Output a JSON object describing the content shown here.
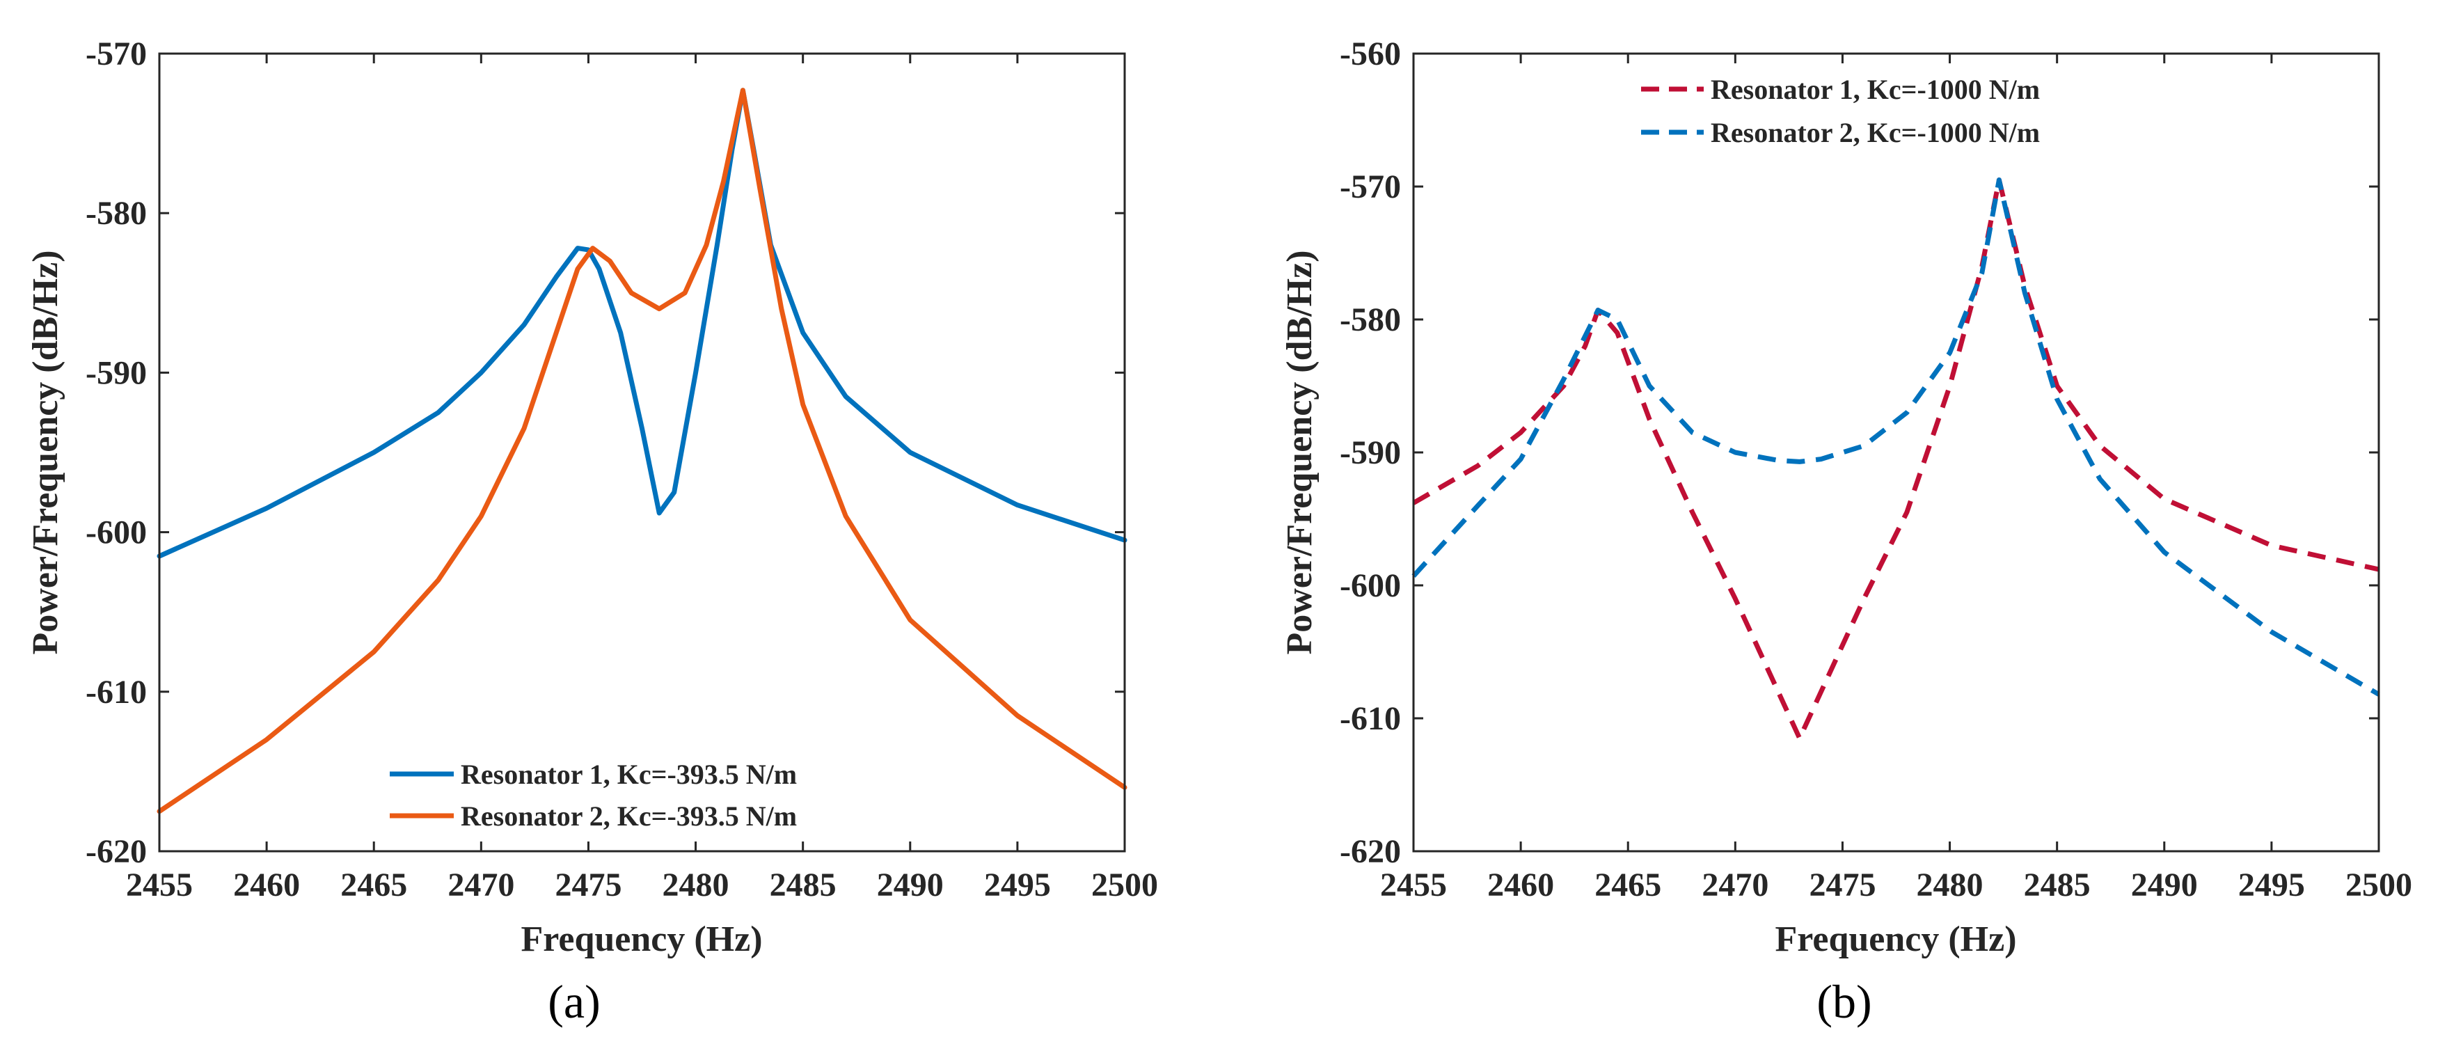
{
  "chart_data": [
    {
      "type": "line",
      "panel_label": "(a)",
      "xlabel": "Frequency (Hz)",
      "ylabel": "Power/Frequency (dB/Hz)",
      "xlim": [
        2455,
        2500
      ],
      "ylim": [
        -620,
        -570
      ],
      "xticks": [
        2455,
        2460,
        2465,
        2470,
        2475,
        2480,
        2485,
        2490,
        2495,
        2500
      ],
      "yticks": [
        -620,
        -610,
        -600,
        -590,
        -580,
        -570
      ],
      "grid": false,
      "legend_position": "bottom-center",
      "series": [
        {
          "name": "Resonator 1, Kc=-393.5 N/m",
          "color": "#0072BD",
          "style": "solid",
          "x": [
            2455,
            2460,
            2465,
            2468,
            2470,
            2472,
            2473.5,
            2474.5,
            2475,
            2475.5,
            2476.5,
            2477.5,
            2478.3,
            2479,
            2480,
            2481,
            2481.7,
            2482.2,
            2482.7,
            2483.5,
            2485,
            2487,
            2490,
            2495,
            2500
          ],
          "y": [
            -601.5,
            -598.5,
            -595.0,
            -592.5,
            -590.0,
            -587.0,
            -584.0,
            -582.2,
            -582.3,
            -583.5,
            -587.5,
            -593.5,
            -598.8,
            -597.5,
            -590.0,
            -582.0,
            -576.0,
            -572.3,
            -576.0,
            -582.0,
            -587.5,
            -591.5,
            -595.0,
            -598.3,
            -600.5
          ]
        },
        {
          "name": "Resonator 2, Kc=-393.5 N/m",
          "color": "#EA5A14",
          "style": "solid",
          "x": [
            2455,
            2460,
            2465,
            2468,
            2470,
            2472,
            2473.5,
            2474.5,
            2475.2,
            2476,
            2477,
            2478.3,
            2479.5,
            2480.5,
            2481.3,
            2482.2,
            2483,
            2484,
            2485,
            2487,
            2490,
            2495,
            2500
          ],
          "y": [
            -617.5,
            -613.0,
            -607.5,
            -603.0,
            -599.0,
            -593.5,
            -587.5,
            -583.5,
            -582.2,
            -583.0,
            -585.0,
            -586.0,
            -585.0,
            -582.0,
            -578.0,
            -572.3,
            -578.5,
            -586.0,
            -592.0,
            -599.0,
            -605.5,
            -611.5,
            -616.0
          ]
        }
      ]
    },
    {
      "type": "line",
      "panel_label": "(b)",
      "xlabel": "Frequency (Hz)",
      "ylabel": "Power/Frequency (dB/Hz)",
      "xlim": [
        2455,
        2500
      ],
      "ylim": [
        -620,
        -560
      ],
      "xticks": [
        2455,
        2460,
        2465,
        2470,
        2475,
        2480,
        2485,
        2490,
        2495,
        2500
      ],
      "yticks": [
        -620,
        -610,
        -600,
        -590,
        -580,
        -570,
        -560
      ],
      "grid": false,
      "legend_position": "top-center",
      "series": [
        {
          "name": "Resonator 1, Kc=-1000 N/m",
          "color": "#C00F35",
          "style": "dashed",
          "x": [
            2455,
            2458,
            2460,
            2462,
            2463,
            2463.6,
            2464.5,
            2466,
            2468,
            2470,
            2472,
            2473,
            2474,
            2476,
            2478,
            2480,
            2481.5,
            2482.3,
            2483.5,
            2485,
            2487,
            2490,
            2495,
            2500
          ],
          "y": [
            -593.8,
            -591.0,
            -588.5,
            -585.0,
            -582.0,
            -579.3,
            -581.0,
            -587.5,
            -594.5,
            -601.0,
            -608.0,
            -611.5,
            -608.0,
            -601.0,
            -594.5,
            -585.0,
            -576.0,
            -569.5,
            -577.5,
            -585.0,
            -589.5,
            -593.5,
            -597.0,
            -598.8
          ]
        },
        {
          "name": "Resonator 2, Kc=-1000 N/m",
          "color": "#0072BD",
          "style": "dashed",
          "x": [
            2455,
            2458,
            2460,
            2462,
            2463.6,
            2464.5,
            2466,
            2468,
            2470,
            2472,
            2473,
            2474,
            2476,
            2478,
            2480,
            2481.5,
            2482.3,
            2483.5,
            2485,
            2487,
            2490,
            2495,
            2500
          ],
          "y": [
            -599.3,
            -594.0,
            -590.5,
            -584.5,
            -579.3,
            -580.0,
            -585.0,
            -588.5,
            -590.0,
            -590.6,
            -590.7,
            -590.5,
            -589.5,
            -587.0,
            -582.5,
            -576.5,
            -569.5,
            -578.0,
            -586.0,
            -592.0,
            -597.5,
            -603.5,
            -608.2
          ]
        }
      ]
    }
  ]
}
